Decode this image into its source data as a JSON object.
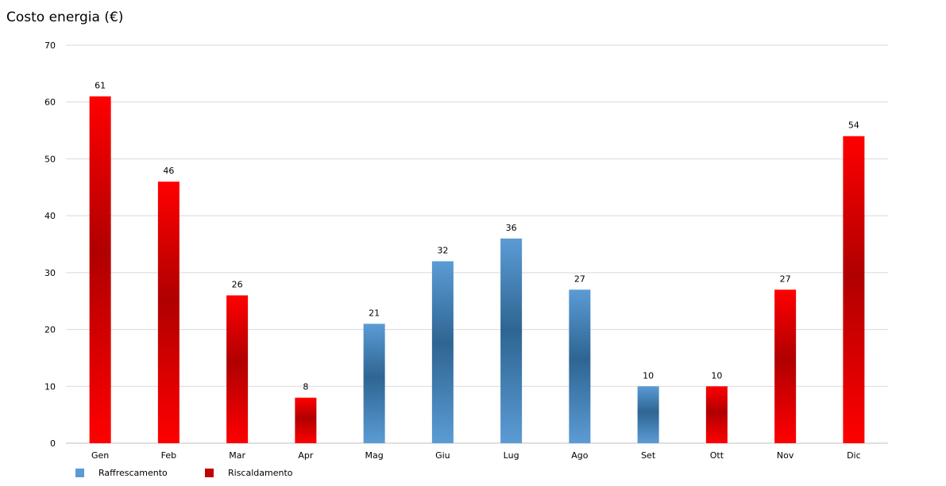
{
  "chart_data": {
    "type": "bar",
    "title": "Costo energia (€)",
    "xlabel": "",
    "ylabel": "",
    "ylim": [
      0,
      70
    ],
    "yticks": [
      0,
      10,
      20,
      30,
      40,
      50,
      60,
      70
    ],
    "grid": true,
    "legend_position": "bottom-left",
    "categories": [
      "Gen",
      "Feb",
      "Mar",
      "Apr",
      "Mag",
      "Giu",
      "Lug",
      "Ago",
      "Set",
      "Ott",
      "Nov",
      "Dic"
    ],
    "values": [
      61,
      46,
      26,
      8,
      21,
      32,
      36,
      27,
      10,
      10,
      27,
      54
    ],
    "bar_series": [
      "Riscaldamento",
      "Riscaldamento",
      "Riscaldamento",
      "Riscaldamento",
      "Raffrescamento",
      "Raffrescamento",
      "Raffrescamento",
      "Raffrescamento",
      "Raffrescamento",
      "Riscaldamento",
      "Riscaldamento",
      "Riscaldamento"
    ],
    "series": [
      {
        "name": "Raffrescamento",
        "color": "#5b9bd5",
        "dark_color": "#2e6592"
      },
      {
        "name": "Riscaldamento",
        "color": "#ff0000",
        "dark_color": "#b00000"
      }
    ]
  }
}
